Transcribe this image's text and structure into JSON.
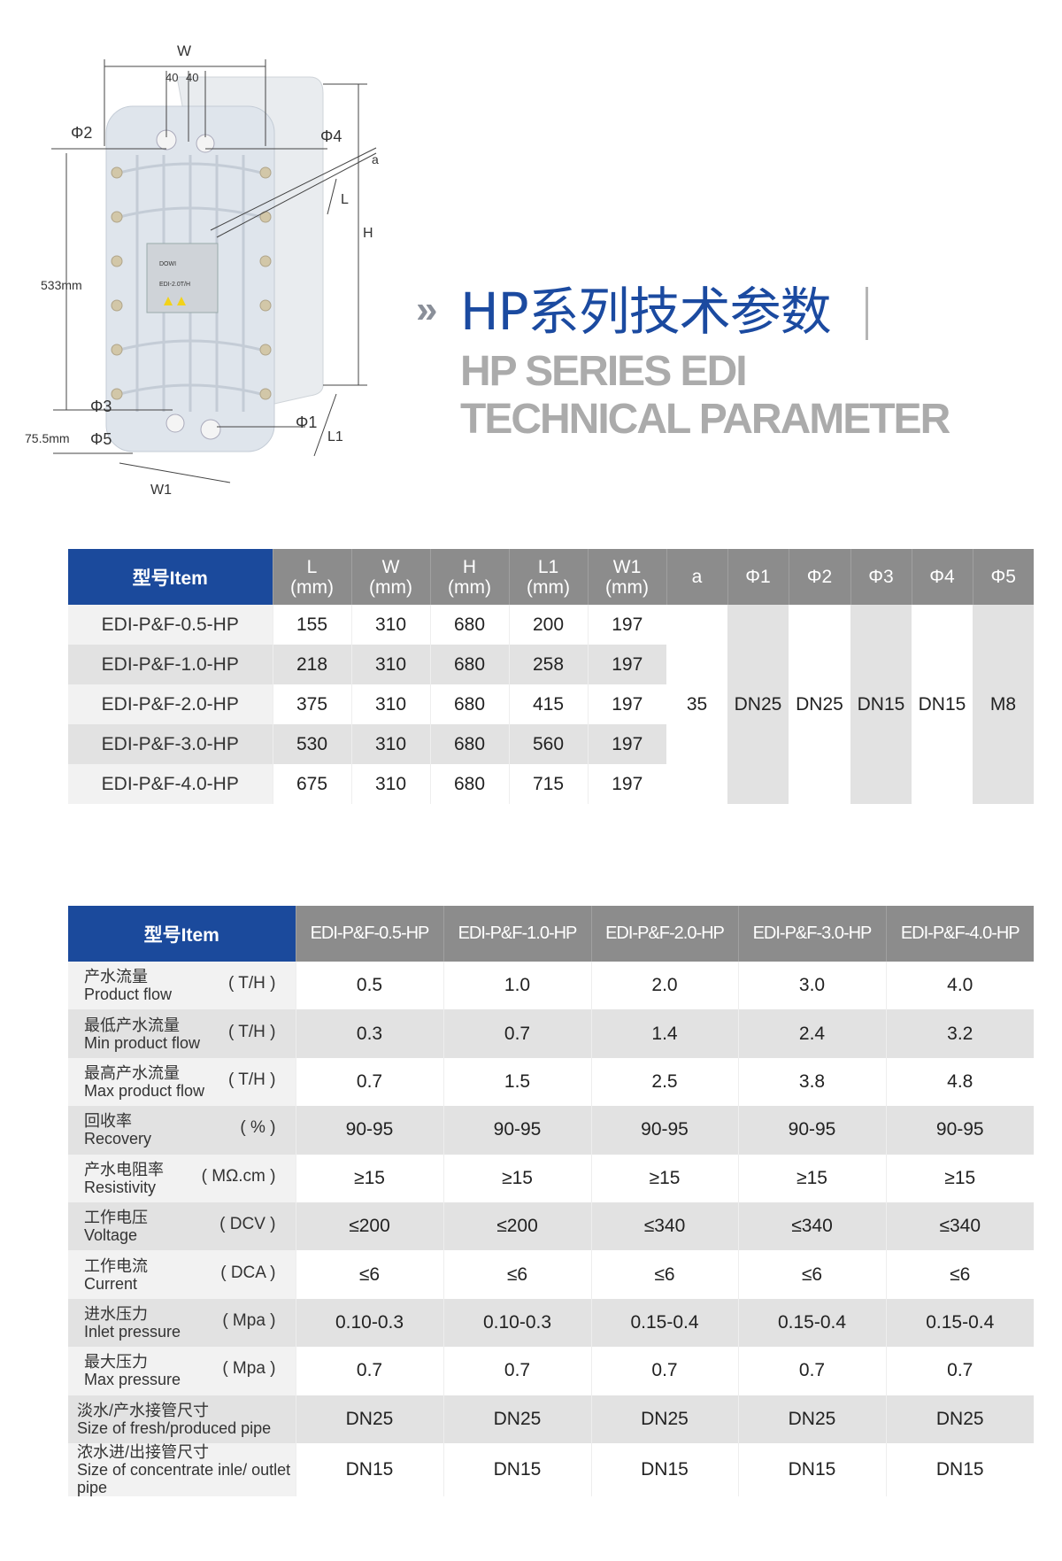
{
  "illustration": {
    "labels": {
      "w": "W",
      "forty_a": "40",
      "forty_b": "40",
      "phi2": "Φ2",
      "phi4": "Φ4",
      "a": "a",
      "l": "L",
      "h": "H",
      "height_mm": "533mm",
      "phi3": "Φ3",
      "phi1": "Φ1",
      "bottom_mm": "75.5mm",
      "phi5": "Φ5",
      "l1": "L1",
      "w1": "W1"
    },
    "plate_model": "EDI-2.0T/H",
    "plate_logo": "DOWI"
  },
  "heading": {
    "chevron": "»",
    "title_cn": "HP系列技术参数",
    "title_en_line1": "HP SERIES EDI",
    "title_en_line2": "TECHNICAL PARAMETER"
  },
  "colors": {
    "brand_blue": "#1b4a9c",
    "header_grey": "#8c8c8c",
    "row_grey": "#e2e2e2"
  },
  "dimensions_table": {
    "item_header": "型号Item",
    "columns": [
      {
        "name": "L",
        "unit": "(mm)"
      },
      {
        "name": "W",
        "unit": "(mm)"
      },
      {
        "name": "H",
        "unit": "(mm)"
      },
      {
        "name": "L1",
        "unit": "(mm)"
      },
      {
        "name": "W1",
        "unit": "(mm)"
      }
    ],
    "merged_columns": [
      "a",
      "Φ1",
      "Φ2",
      "Φ3",
      "Φ4",
      "Φ5"
    ],
    "rows": [
      {
        "model": "EDI-P&F-0.5-HP",
        "values": [
          "155",
          "310",
          "680",
          "200",
          "197"
        ]
      },
      {
        "model": "EDI-P&F-1.0-HP",
        "values": [
          "218",
          "310",
          "680",
          "258",
          "197"
        ]
      },
      {
        "model": "EDI-P&F-2.0-HP",
        "values": [
          "375",
          "310",
          "680",
          "415",
          "197"
        ]
      },
      {
        "model": "EDI-P&F-3.0-HP",
        "values": [
          "530",
          "310",
          "680",
          "560",
          "197"
        ]
      },
      {
        "model": "EDI-P&F-4.0-HP",
        "values": [
          "675",
          "310",
          "680",
          "715",
          "197"
        ]
      }
    ],
    "merged_values": [
      "35",
      "DN25",
      "DN25",
      "DN15",
      "DN15",
      "M8"
    ]
  },
  "spec_table": {
    "item_header": "型号Item",
    "models": [
      "EDI-P&F-0.5-HP",
      "EDI-P&F-1.0-HP",
      "EDI-P&F-2.0-HP",
      "EDI-P&F-3.0-HP",
      "EDI-P&F-4.0-HP"
    ],
    "rows": [
      {
        "cn": "产水流量",
        "en": "Product flow",
        "unit": "( T/H )",
        "values": [
          "0.5",
          "1.0",
          "2.0",
          "3.0",
          "4.0"
        ]
      },
      {
        "cn": "最低产水流量",
        "en": "Min product flow",
        "unit": "( T/H )",
        "values": [
          "0.3",
          "0.7",
          "1.4",
          "2.4",
          "3.2"
        ]
      },
      {
        "cn": "最高产水流量",
        "en": "Max product flow",
        "unit": "( T/H )",
        "values": [
          "0.7",
          "1.5",
          "2.5",
          "3.8",
          "4.8"
        ]
      },
      {
        "cn": "回收率",
        "en": "Recovery",
        "unit": "( % )",
        "values": [
          "90-95",
          "90-95",
          "90-95",
          "90-95",
          "90-95"
        ]
      },
      {
        "cn": "产水电阻率",
        "en": "Resistivity",
        "unit": "( MΩ.cm )",
        "values": [
          "≥15",
          "≥15",
          "≥15",
          "≥15",
          "≥15"
        ]
      },
      {
        "cn": "工作电压",
        "en": "Voltage",
        "unit": "( DCV )",
        "values": [
          "≤200",
          "≤200",
          "≤340",
          "≤340",
          "≤340"
        ]
      },
      {
        "cn": "工作电流",
        "en": "Current",
        "unit": "( DCA )",
        "values": [
          "≤6",
          "≤6",
          "≤6",
          "≤6",
          "≤6"
        ]
      },
      {
        "cn": "进水压力",
        "en": "Inlet pressure",
        "unit": "( Mpa )",
        "values": [
          "0.10-0.3",
          "0.10-0.3",
          "0.15-0.4",
          "0.15-0.4",
          "0.15-0.4"
        ]
      },
      {
        "cn": "最大压力",
        "en": "Max pressure",
        "unit": "( Mpa )",
        "values": [
          "0.7",
          "0.7",
          "0.7",
          "0.7",
          "0.7"
        ]
      },
      {
        "cn": "淡水/产水接管尺寸",
        "en": "Size of fresh/produced pipe",
        "unit": "",
        "values": [
          "DN25",
          "DN25",
          "DN25",
          "DN25",
          "DN25"
        ]
      },
      {
        "cn": "浓水进/出接管尺寸",
        "en": "Size of concentrate inle/ outlet pipe",
        "unit": "",
        "values": [
          "DN15",
          "DN15",
          "DN15",
          "DN15",
          "DN15"
        ]
      }
    ]
  }
}
